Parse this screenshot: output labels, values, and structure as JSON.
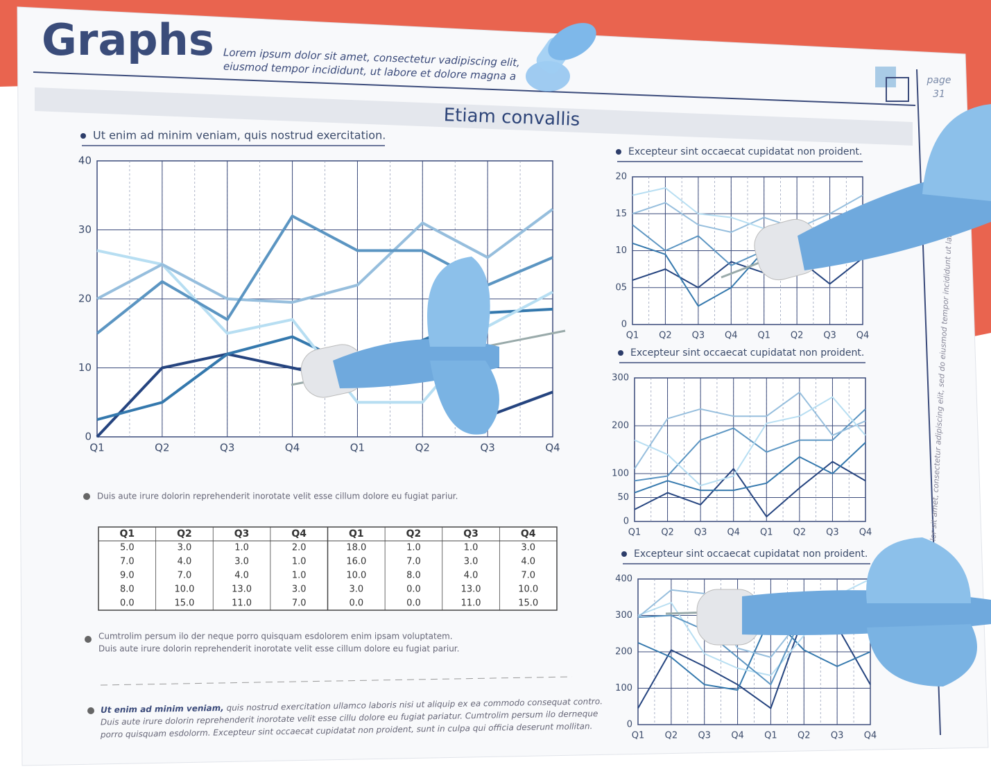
{
  "header": {
    "title": "Graphs",
    "subtitle": [
      "Lorem ipsum dolor sit amet, consectetur vadipiscing elit,",
      "eiusmod  tempor incididunt, ut labore et dolore magna a"
    ],
    "page_label": "page",
    "page_number": "31"
  },
  "section_title": "Etiam convallis",
  "side_text": "lor sit amet, consectetur adipiscing elit, sed do eiusmod tempor incididunt ut labore",
  "paragraphs": [
    "Duis aute irure dolorin reprehenderit inorotate velit esse cillum dolore eu fugiat pariur.",
    "Cumtrolim persum ilo der  neque porro quisquam esdolorem  enim ipsam voluptatem.",
    "Duis aute irure dolorin reprehenderit inorotate velit esse cillum dolore eu fugiat pariur."
  ],
  "footer_note": {
    "lead": "Ut enim ad minim veniam,",
    "lines": [
      " quis nostrud exercitation ullamco laboris nisi ut aliquip ex ea commodo consequat contro.",
      "Duis aute irure dolorin reprehenderit inorotate velit esse cillu dolore eu fugiat pariatur. Cumtrolim persum ilo derneque",
      "porro quisquam esdolorm. Excepteur sint occaecat cupidatat non proident, sunt in culpa qui officia  deserunt mollitan."
    ]
  },
  "table": {
    "header": [
      "Q1",
      "Q2",
      "Q3",
      "Q4",
      "Q1",
      "Q2",
      "Q3",
      "Q4"
    ],
    "rows": [
      [
        "5.0",
        "3.0",
        "1.0",
        "2.0",
        "18.0",
        "1.0",
        "1.0",
        "3.0"
      ],
      [
        "7.0",
        "4.0",
        "3.0",
        "1.0",
        "16.0",
        "7.0",
        "3.0",
        "4.0"
      ],
      [
        "9.0",
        "7.0",
        "4.0",
        "1.0",
        "10.0",
        "8.0",
        "4.0",
        "7.0"
      ],
      [
        "8.0",
        "10.0",
        "13.0",
        "3.0",
        "3.0",
        "0.0",
        "13.0",
        "10.0"
      ],
      [
        "0.0",
        "15.0",
        "11.0",
        "7.0",
        "0.0",
        "0.0",
        "11.0",
        "15.0"
      ]
    ]
  },
  "chart_data": [
    {
      "type": "line",
      "title": "Ut enim ad minim veniam, quis nostrud exercitation.",
      "categories": [
        "Q1",
        "Q2",
        "Q3",
        "Q4",
        "Q1",
        "Q2",
        "Q3",
        "Q4"
      ],
      "ylim": [
        0,
        40
      ],
      "yticks": [
        0,
        10,
        20,
        30,
        40
      ],
      "grid": true,
      "series": [
        {
          "color": "#25447f",
          "values": [
            0,
            10,
            12,
            10,
            8,
            11,
            3,
            6.5
          ]
        },
        {
          "color": "#3478ad",
          "values": [
            2.5,
            5,
            12,
            14.5,
            10,
            14,
            18,
            18.5
          ]
        },
        {
          "color": "#b7def2",
          "values": [
            27,
            25,
            15,
            17,
            5,
            5,
            16,
            21
          ]
        },
        {
          "color": "#96bedd",
          "values": [
            20,
            25,
            20,
            19.5,
            22,
            31,
            26,
            33
          ]
        },
        {
          "color": "#5b95c2",
          "values": [
            15,
            22.5,
            17,
            32,
            27,
            27,
            22,
            26
          ]
        }
      ]
    },
    {
      "type": "line",
      "title": "Excepteur sint occaecat cupidatat non proident.",
      "categories": [
        "Q1",
        "Q2",
        "Q3",
        "Q4",
        "Q1",
        "Q2",
        "Q3",
        "Q4"
      ],
      "ylim": [
        0,
        20
      ],
      "yticks": [
        0,
        {
          "value": 5,
          "label": "05"
        },
        10,
        15,
        20
      ],
      "grid": true,
      "series": [
        {
          "color": "#25447f",
          "values": [
            6,
            7.5,
            5,
            8.5,
            7,
            9,
            5.5,
            9
          ]
        },
        {
          "color": "#3478ad",
          "values": [
            11,
            9.5,
            2.5,
            5,
            10,
            7.5,
            8,
            9
          ]
        },
        {
          "color": "#5b95c2",
          "values": [
            13.5,
            10,
            12,
            8,
            10,
            13,
            12,
            14
          ]
        },
        {
          "color": "#96bedd",
          "values": [
            15,
            16.5,
            13.5,
            12.5,
            14.5,
            13,
            15,
            17.5
          ]
        },
        {
          "color": "#b7def2",
          "values": [
            17.5,
            18.5,
            15,
            14.5,
            13,
            11,
            12,
            12
          ]
        }
      ]
    },
    {
      "type": "line",
      "title": "Excepteur sint occaecat cupidatat non proident.",
      "categories": [
        "Q1",
        "Q2",
        "Q3",
        "Q4",
        "Q1",
        "Q2",
        "Q3",
        "Q4"
      ],
      "ylim": [
        0,
        300
      ],
      "yticks": [
        0,
        50,
        100,
        200,
        300
      ],
      "grid": true,
      "series": [
        {
          "color": "#25447f",
          "values": [
            25,
            60,
            35,
            110,
            10,
            70,
            125,
            85
          ]
        },
        {
          "color": "#3478ad",
          "values": [
            60,
            85,
            65,
            65,
            80,
            135,
            100,
            165
          ]
        },
        {
          "color": "#5b95c2",
          "values": [
            85,
            95,
            170,
            195,
            145,
            170,
            170,
            235
          ]
        },
        {
          "color": "#96bedd",
          "values": [
            110,
            215,
            235,
            220,
            220,
            270,
            180,
            210
          ]
        },
        {
          "color": "#b7def2",
          "values": [
            170,
            140,
            75,
            95,
            205,
            220,
            260,
            180
          ]
        }
      ]
    },
    {
      "type": "line",
      "title": "Excepteur sint occaecat cupidatat non proident.",
      "categories": [
        "Q1",
        "Q2",
        "Q3",
        "Q4",
        "Q1",
        "Q2",
        "Q3",
        "Q4"
      ],
      "ylim": [
        0,
        400
      ],
      "yticks": [
        0,
        100,
        200,
        300,
        400
      ],
      "grid": true,
      "series": [
        {
          "color": "#25447f",
          "values": [
            45,
            205,
            160,
            110,
            45,
            300,
            270,
            110
          ]
        },
        {
          "color": "#3478ad",
          "values": [
            225,
            185,
            110,
            95,
            300,
            205,
            160,
            200
          ]
        },
        {
          "color": "#b7def2",
          "values": [
            300,
            335,
            195,
            155,
            135,
            245,
            355,
            400
          ]
        },
        {
          "color": "#5b95c2",
          "values": [
            295,
            300,
            260,
            185,
            110,
            310,
            275,
            290
          ]
        },
        {
          "color": "#96bedd",
          "values": [
            295,
            370,
            360,
            210,
            185,
            300,
            330,
            330
          ]
        }
      ]
    }
  ]
}
